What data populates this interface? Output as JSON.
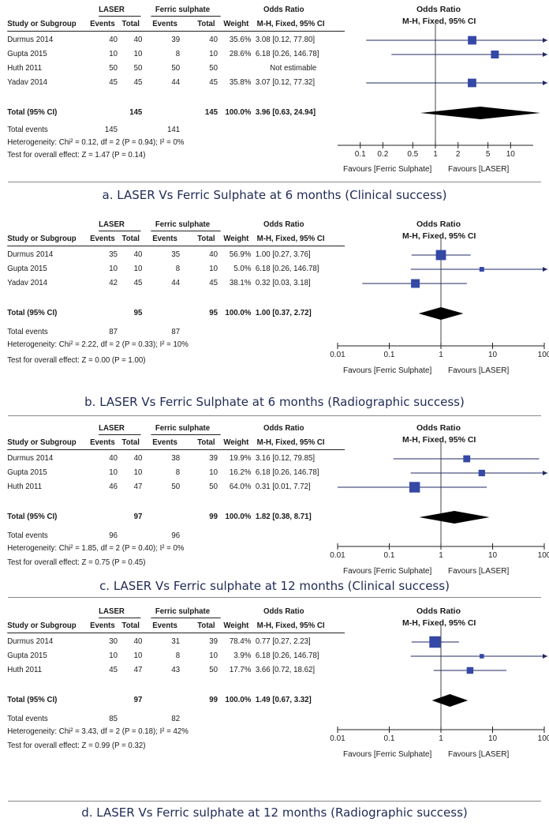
{
  "colors": {
    "square": "#3548a6",
    "line": "#1f2a66",
    "diamond": "#000000",
    "caption": "#1f2a55"
  },
  "chart_data": [
    {
      "type": "forest",
      "caption": "a. LASER Vs Ferric Sulphate at 6 months (Clinical success)",
      "group1": "LASER",
      "group2": "Ferric sulphate",
      "col_study": "Study or Subgroup",
      "col_events": "Events",
      "col_total": "Total",
      "col_weight": "Weight",
      "col_or_title": "Odds Ratio",
      "col_or_sub": "M-H, Fixed, 95% CI",
      "studies": [
        {
          "name": "Durmus 2014",
          "e1": "40",
          "t1": "40",
          "e2": "39",
          "t2": "40",
          "weight": "35.6%",
          "ci": "3.08 [0.12, 77.80]",
          "or": 3.08,
          "lo": 0.12,
          "hi": 77.8
        },
        {
          "name": "Gupta 2015",
          "e1": "10",
          "t1": "10",
          "e2": "8",
          "t2": "10",
          "weight": "28.6%",
          "ci": "6.18 [0.26, 146.78]",
          "or": 6.18,
          "lo": 0.26,
          "hi": 146.78
        },
        {
          "name": "Huth 2011",
          "e1": "50",
          "t1": "50",
          "e2": "50",
          "t2": "50",
          "weight": "",
          "ci": "Not estimable",
          "or": null,
          "lo": null,
          "hi": null
        },
        {
          "name": "Yadav 2014",
          "e1": "45",
          "t1": "45",
          "e2": "44",
          "t2": "45",
          "weight": "35.8%",
          "ci": "3.07 [0.12, 77.32]",
          "or": 3.07,
          "lo": 0.12,
          "hi": 77.32
        }
      ],
      "total": {
        "label": "Total (95% CI)",
        "t1": "145",
        "t2": "145",
        "weight": "100.0%",
        "ci": "3.96 [0.63, 24.94]",
        "or": 3.96,
        "lo": 0.63,
        "hi": 24.94
      },
      "total_events_label": "Total events",
      "total_events1": "145",
      "total_events2": "141",
      "heterogeneity": "Heterogeneity: Chi² = 0.12, df = 2 (P = 0.94); I² = 0%",
      "overall": "Test for overall effect: Z = 1.47 (P = 0.14)",
      "xscale": "log",
      "xlim": [
        0.05,
        20
      ],
      "ticks": [
        0.1,
        0.2,
        0.5,
        1,
        2,
        5,
        10
      ],
      "tick_labels": [
        "0.1",
        "0.2",
        "0.5",
        "1",
        "2",
        "5",
        "10"
      ],
      "favours_left": "Favours [Ferric Sulphate]",
      "favours_right": "Favours [LASER]"
    },
    {
      "type": "forest",
      "caption": "b. LASER Vs Ferric Sulphate at 6 months (Radiographic success)",
      "group1": "LASER",
      "group2": "Ferric sulphate",
      "col_study": "Study or Subgroup",
      "col_events": "Events",
      "col_total": "Total",
      "col_weight": "Weight",
      "col_or_title": "Odds Ratio",
      "col_or_sub": "M-H, Fixed, 95% CI",
      "studies": [
        {
          "name": "Durmus 2014",
          "e1": "35",
          "t1": "40",
          "e2": "35",
          "t2": "40",
          "weight": "56.9%",
          "ci": "1.00 [0.27, 3.76]",
          "or": 1.0,
          "lo": 0.27,
          "hi": 3.76
        },
        {
          "name": "Gupta 2015",
          "e1": "10",
          "t1": "10",
          "e2": "8",
          "t2": "10",
          "weight": "5.0%",
          "ci": "6.18 [0.26, 146.78]",
          "or": 6.18,
          "lo": 0.26,
          "hi": 146.78
        },
        {
          "name": "Yadav 2014",
          "e1": "42",
          "t1": "45",
          "e2": "44",
          "t2": "45",
          "weight": "38.1%",
          "ci": "0.32 [0.03, 3.18]",
          "or": 0.32,
          "lo": 0.03,
          "hi": 3.18
        }
      ],
      "total": {
        "label": "Total (95% CI)",
        "t1": "95",
        "t2": "95",
        "weight": "100.0%",
        "ci": "1.00 [0.37, 2.72]",
        "or": 1.0,
        "lo": 0.37,
        "hi": 2.72
      },
      "total_events_label": "Total events",
      "total_events1": "87",
      "total_events2": "87",
      "heterogeneity": "Heterogeneity: Chi² = 2.22, df = 2 (P = 0.33); I² = 10%",
      "overall": "Test for overall effect: Z = 0.00 (P = 1.00)",
      "xscale": "log",
      "xlim": [
        0.01,
        100
      ],
      "ticks": [
        0.01,
        0.1,
        1,
        10,
        100
      ],
      "tick_labels": [
        "0.01",
        "0.1",
        "1",
        "10",
        "100"
      ],
      "favours_left": "Favours [Ferric Sulphate]",
      "favours_right": "Favours [LASER]"
    },
    {
      "type": "forest",
      "caption": "c. LASER Vs Ferric sulphate at 12 months (Clinical success)",
      "group1": "LASER",
      "group2": "Ferric sulphate",
      "col_study": "Study or Subgroup",
      "col_events": "Events",
      "col_total": "Total",
      "col_weight": "Weight",
      "col_or_title": "Odds Ratio",
      "col_or_sub": "M-H, Fixed, 95% CI",
      "studies": [
        {
          "name": "Durmus 2014",
          "e1": "40",
          "t1": "40",
          "e2": "38",
          "t2": "39",
          "weight": "19.9%",
          "ci": "3.16 [0.12, 79.85]",
          "or": 3.16,
          "lo": 0.12,
          "hi": 79.85
        },
        {
          "name": "Gupta 2015",
          "e1": "10",
          "t1": "10",
          "e2": "8",
          "t2": "10",
          "weight": "16.2%",
          "ci": "6.18 [0.26, 146.78]",
          "or": 6.18,
          "lo": 0.26,
          "hi": 146.78
        },
        {
          "name": "Huth 2011",
          "e1": "46",
          "t1": "47",
          "e2": "50",
          "t2": "50",
          "weight": "64.0%",
          "ci": "0.31 [0.01, 7.72]",
          "or": 0.31,
          "lo": 0.01,
          "hi": 7.72
        }
      ],
      "total": {
        "label": "Total (95% CI)",
        "t1": "97",
        "t2": "99",
        "weight": "100.0%",
        "ci": "1.82 [0.38, 8.71]",
        "or": 1.82,
        "lo": 0.38,
        "hi": 8.71
      },
      "total_events_label": "Total events",
      "total_events1": "96",
      "total_events2": "96",
      "heterogeneity": "Heterogeneity: Chi² = 1.85, df = 2 (P = 0.40); I² = 0%",
      "overall": "Test for overall effect: Z = 0.75 (P = 0.45)",
      "xscale": "log",
      "xlim": [
        0.01,
        100
      ],
      "ticks": [
        0.01,
        0.1,
        1,
        10,
        100
      ],
      "tick_labels": [
        "0.01",
        "0.1",
        "1",
        "10",
        "100"
      ],
      "favours_left": "Favours [Ferric Sulphate]",
      "favours_right": "Favours [LASER]"
    },
    {
      "type": "forest",
      "caption": "d. LASER Vs Ferric sulphate at 12 months (Radiographic success)",
      "group1": "LASER",
      "group2": "Ferric sulphate",
      "col_study": "Study or Subgroup",
      "col_events": "Events",
      "col_total": "Total",
      "col_weight": "Weight",
      "col_or_title": "Odds Ratio",
      "col_or_sub": "M-H, Fixed, 95% CI",
      "studies": [
        {
          "name": "Durmus 2014",
          "e1": "30",
          "t1": "40",
          "e2": "31",
          "t2": "39",
          "weight": "78.4%",
          "ci": "0.77 [0.27, 2.23]",
          "or": 0.77,
          "lo": 0.27,
          "hi": 2.23
        },
        {
          "name": "Gupta 2015",
          "e1": "10",
          "t1": "10",
          "e2": "8",
          "t2": "10",
          "weight": "3.9%",
          "ci": "6.18 [0.26, 146.78]",
          "or": 6.18,
          "lo": 0.26,
          "hi": 146.78
        },
        {
          "name": "Huth 2011",
          "e1": "45",
          "t1": "47",
          "e2": "43",
          "t2": "50",
          "weight": "17.7%",
          "ci": "3.66 [0.72, 18.62]",
          "or": 3.66,
          "lo": 0.72,
          "hi": 18.62
        }
      ],
      "total": {
        "label": "Total (95% CI)",
        "t1": "97",
        "t2": "99",
        "weight": "100.0%",
        "ci": "1.49 [0.67, 3.32]",
        "or": 1.49,
        "lo": 0.67,
        "hi": 3.32
      },
      "total_events_label": "Total events",
      "total_events1": "85",
      "total_events2": "82",
      "heterogeneity": "Heterogeneity: Chi² = 3.43, df = 2 (P = 0.18); I² = 42%",
      "overall": "Test for overall effect: Z = 0.99 (P = 0.32)",
      "xscale": "log",
      "xlim": [
        0.01,
        100
      ],
      "ticks": [
        0.01,
        0.1,
        1,
        10,
        100
      ],
      "tick_labels": [
        "0.01",
        "0.1",
        "1",
        "10",
        "100"
      ],
      "favours_left": "Favours [Ferric Sulphate]",
      "favours_right": "Favours [LASER]"
    }
  ]
}
